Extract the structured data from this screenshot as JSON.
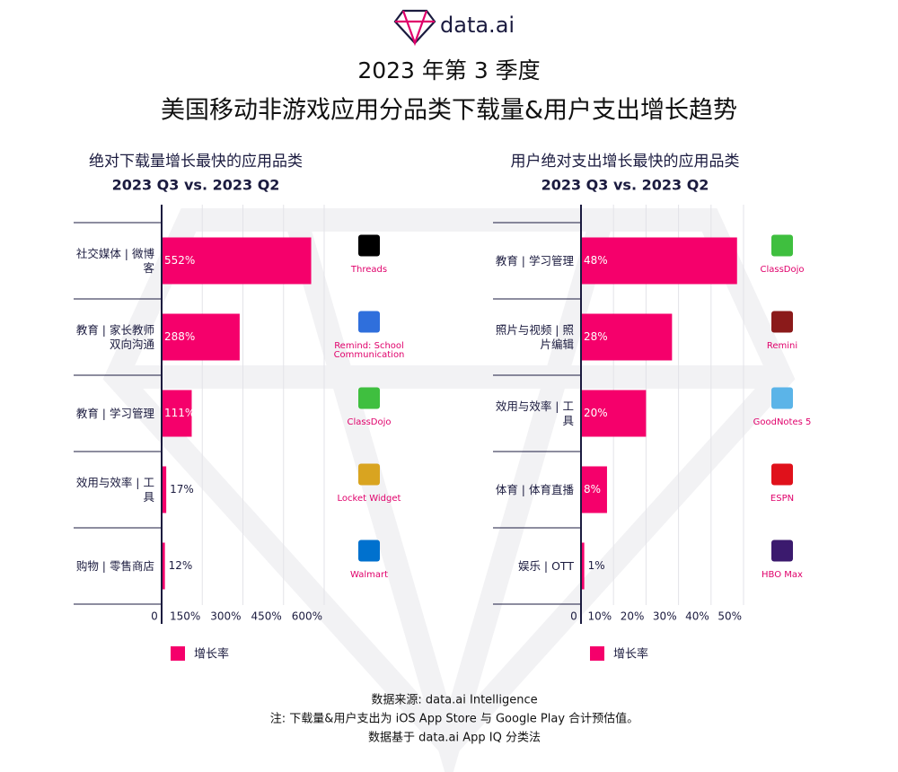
{
  "brand": "data.ai",
  "title": "2023 年第 3 季度",
  "subtitle": "美国移动非游戏应用分品类下载量&用户支出增长趋势",
  "chart_data": [
    {
      "type": "bar",
      "orientation": "horizontal",
      "title": "绝对下载量增长最快的应用品类",
      "subtitle": "2023 Q3 vs. 2023 Q2",
      "categories": [
        "社交媒体 | 微博客",
        "教育 | 家长教师双向沟通",
        "教育 | 学习管理",
        "效用与效率 | 工具",
        "购物 | 零售商店"
      ],
      "apps": [
        "Threads",
        "Remind: School Communication",
        "ClassDojo",
        "Locket Widget",
        "Walmart"
      ],
      "series": [
        {
          "name": "增长率",
          "color": "#f5006b",
          "values": [
            552,
            288,
            111,
            17,
            12
          ],
          "value_labels": [
            "552%",
            "288%",
            "111%",
            "17%",
            "12%"
          ]
        }
      ],
      "xlim": [
        0,
        600
      ],
      "xticks": [
        0,
        {
          "value": 150,
          "label": "150%"
        },
        {
          "value": 300,
          "label": "300%"
        },
        {
          "value": 450,
          "label": "450%"
        },
        {
          "value": 600,
          "label": "600%"
        }
      ],
      "grid": true,
      "legend": "bottom-left"
    },
    {
      "type": "bar",
      "orientation": "horizontal",
      "title": "用户绝对支出增长最快的应用品类",
      "subtitle": "2023 Q3 vs. 2023 Q2",
      "categories": [
        "教育 | 学习管理",
        "照片与视频 | 照片编辑",
        "效用与效率 | 工具",
        "体育 | 体育直播",
        "娱乐 | OTT"
      ],
      "apps": [
        "ClassDojo",
        "Remini",
        "GoodNotes 5",
        "ESPN",
        "HBO Max"
      ],
      "series": [
        {
          "name": "增长率",
          "color": "#f5006b",
          "values": [
            48,
            28,
            20,
            8,
            1
          ],
          "value_labels": [
            "48%",
            "28%",
            "20%",
            "8%",
            "1%"
          ]
        }
      ],
      "xlim": [
        0,
        50
      ],
      "xticks": [
        0,
        {
          "value": 10,
          "label": "10%"
        },
        {
          "value": 20,
          "label": "20%"
        },
        {
          "value": 30,
          "label": "30%"
        },
        {
          "value": 40,
          "label": "40%"
        },
        {
          "value": 50,
          "label": "50%"
        }
      ],
      "grid": true,
      "legend": "bottom-left"
    }
  ],
  "footer": [
    "数据来源: data.ai Intelligence",
    "注: 下载量&用户支出为 iOS App Store 与 Google Play 合计预估值。",
    "数据基于 data.ai App IQ 分类法"
  ]
}
